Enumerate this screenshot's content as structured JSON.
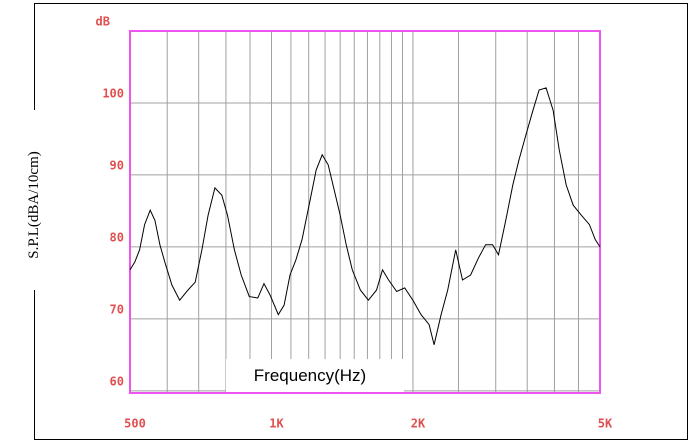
{
  "chart_data": {
    "type": "line",
    "y_unit_label": "dB",
    "ylabel": "S.P.L(dBA/10cm)",
    "xlabel": "Frequency(Hz)",
    "xscale": "log",
    "xlim": [
      500,
      5000
    ],
    "ylim": [
      59.7,
      110
    ],
    "xticks": [
      500,
      {
        "value": 1000,
        "label": "1K"
      },
      {
        "value": 2000,
        "label": "2K"
      },
      {
        "value": 5000,
        "label": "5K"
      }
    ],
    "grid_x": [
      600,
      700,
      800,
      900,
      1000,
      1100,
      1200,
      1300,
      1400,
      1500,
      1600,
      1700,
      1800,
      1900,
      2000,
      2500,
      3000,
      3500,
      4000,
      4500
    ],
    "yticks": [
      60,
      70,
      80,
      90,
      100
    ],
    "grid": true,
    "color": "#000000",
    "frame_color": "#ee55ee",
    "grid_color": "#a0a0a0",
    "label_color": "#e05050",
    "x": [
      500,
      512,
      524,
      537,
      552,
      565,
      579,
      593,
      614,
      638,
      664,
      688,
      711,
      733,
      758,
      784,
      806,
      834,
      862,
      897,
      935,
      964,
      993,
      1034,
      1064,
      1095,
      1127,
      1161,
      1208,
      1245,
      1282,
      1320,
      1360,
      1400,
      1442,
      1486,
      1546,
      1608,
      1673,
      1723,
      1775,
      1847,
      1921,
      1999,
      2080,
      2164,
      2218,
      2295,
      2371,
      2466,
      2549,
      2652,
      2759,
      2855,
      2954,
      3041,
      3153,
      3262,
      3363,
      3480,
      3601,
      3711,
      3840,
      3974,
      4095,
      4238,
      4385,
      4563,
      4747,
      4887,
      5000
    ],
    "values": [
      76.8,
      77.9,
      79.6,
      83.1,
      85.1,
      83.7,
      80.3,
      77.9,
      74.7,
      72.6,
      74.0,
      75.1,
      79.6,
      84.4,
      88.2,
      87.2,
      84.4,
      79.6,
      76.1,
      73.1,
      72.9,
      74.9,
      73.3,
      70.6,
      71.9,
      76.1,
      78.2,
      81.0,
      86.5,
      90.7,
      92.8,
      91.4,
      87.9,
      84.4,
      80.3,
      76.8,
      74.0,
      72.6,
      74.0,
      76.8,
      75.4,
      73.8,
      74.3,
      72.6,
      70.6,
      69.2,
      66.4,
      70.6,
      74.0,
      79.6,
      75.4,
      76.1,
      78.5,
      80.3,
      80.3,
      78.9,
      83.8,
      88.6,
      92.1,
      95.6,
      99.0,
      101.8,
      102.1,
      99.0,
      93.5,
      88.6,
      85.8,
      84.4,
      83.1,
      81.0,
      80.0
    ]
  }
}
